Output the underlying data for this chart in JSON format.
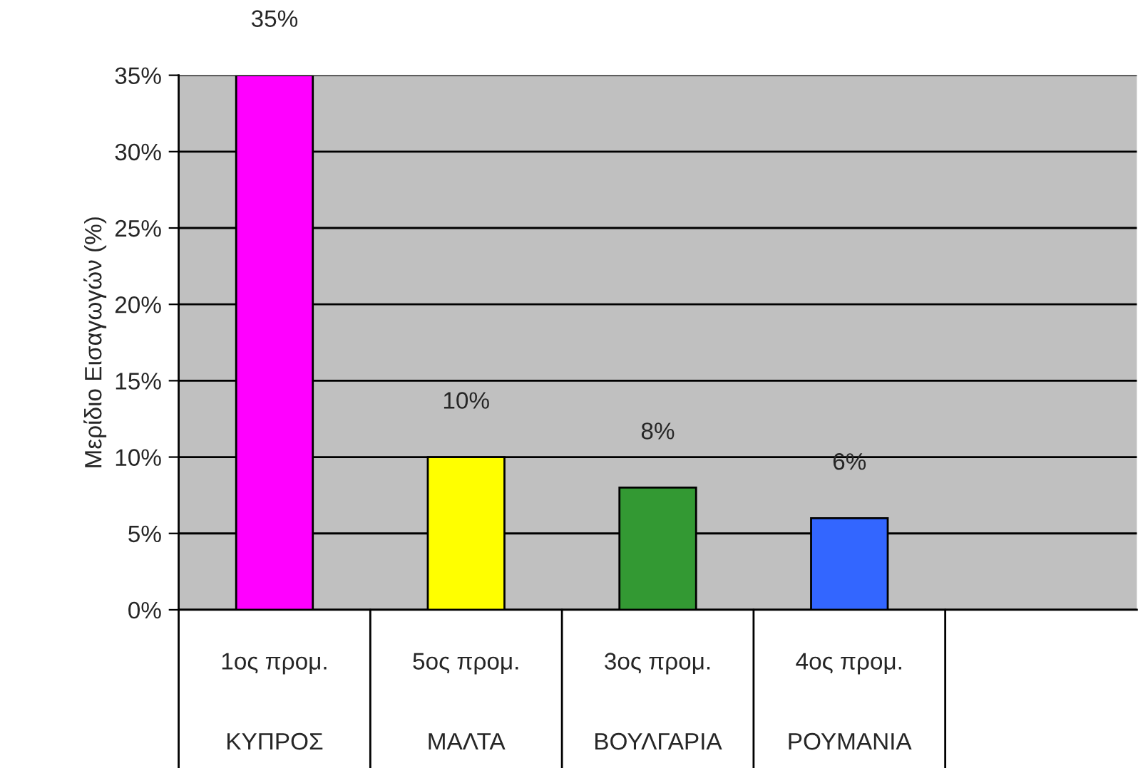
{
  "chart_data": {
    "type": "bar",
    "ylabel": "Μερίδιο Εισαγωγών (%)",
    "categories": [
      "1ος προμ.\nΚΥΠΡΟΣ",
      "5ος προμ.\nΜΑΛΤΑ",
      "3ος προμ.\nΒΟΥΛΓΑΡΙΑ",
      "4ος προμ.\nΡΟΥΜΑΝΙΑ",
      null
    ],
    "values": [
      35,
      10,
      8,
      6,
      null
    ],
    "colors": [
      "#ff00ff",
      "#ffff00",
      "#339933",
      "#3366ff",
      "#c0c0c0"
    ],
    "value_labels": [
      "35%",
      "10%",
      "8%",
      "6%",
      null
    ],
    "ylim": [
      0,
      35
    ],
    "yticks": [
      {
        "value": 0,
        "label": "0%"
      },
      {
        "value": 5,
        "label": "5%"
      },
      {
        "value": 10,
        "label": "10%"
      },
      {
        "value": 15,
        "label": "15%"
      },
      {
        "value": 20,
        "label": "20%"
      },
      {
        "value": 25,
        "label": "25%"
      },
      {
        "value": 30,
        "label": "30%"
      },
      {
        "value": 35,
        "label": "35%"
      }
    ],
    "grid": "y"
  }
}
